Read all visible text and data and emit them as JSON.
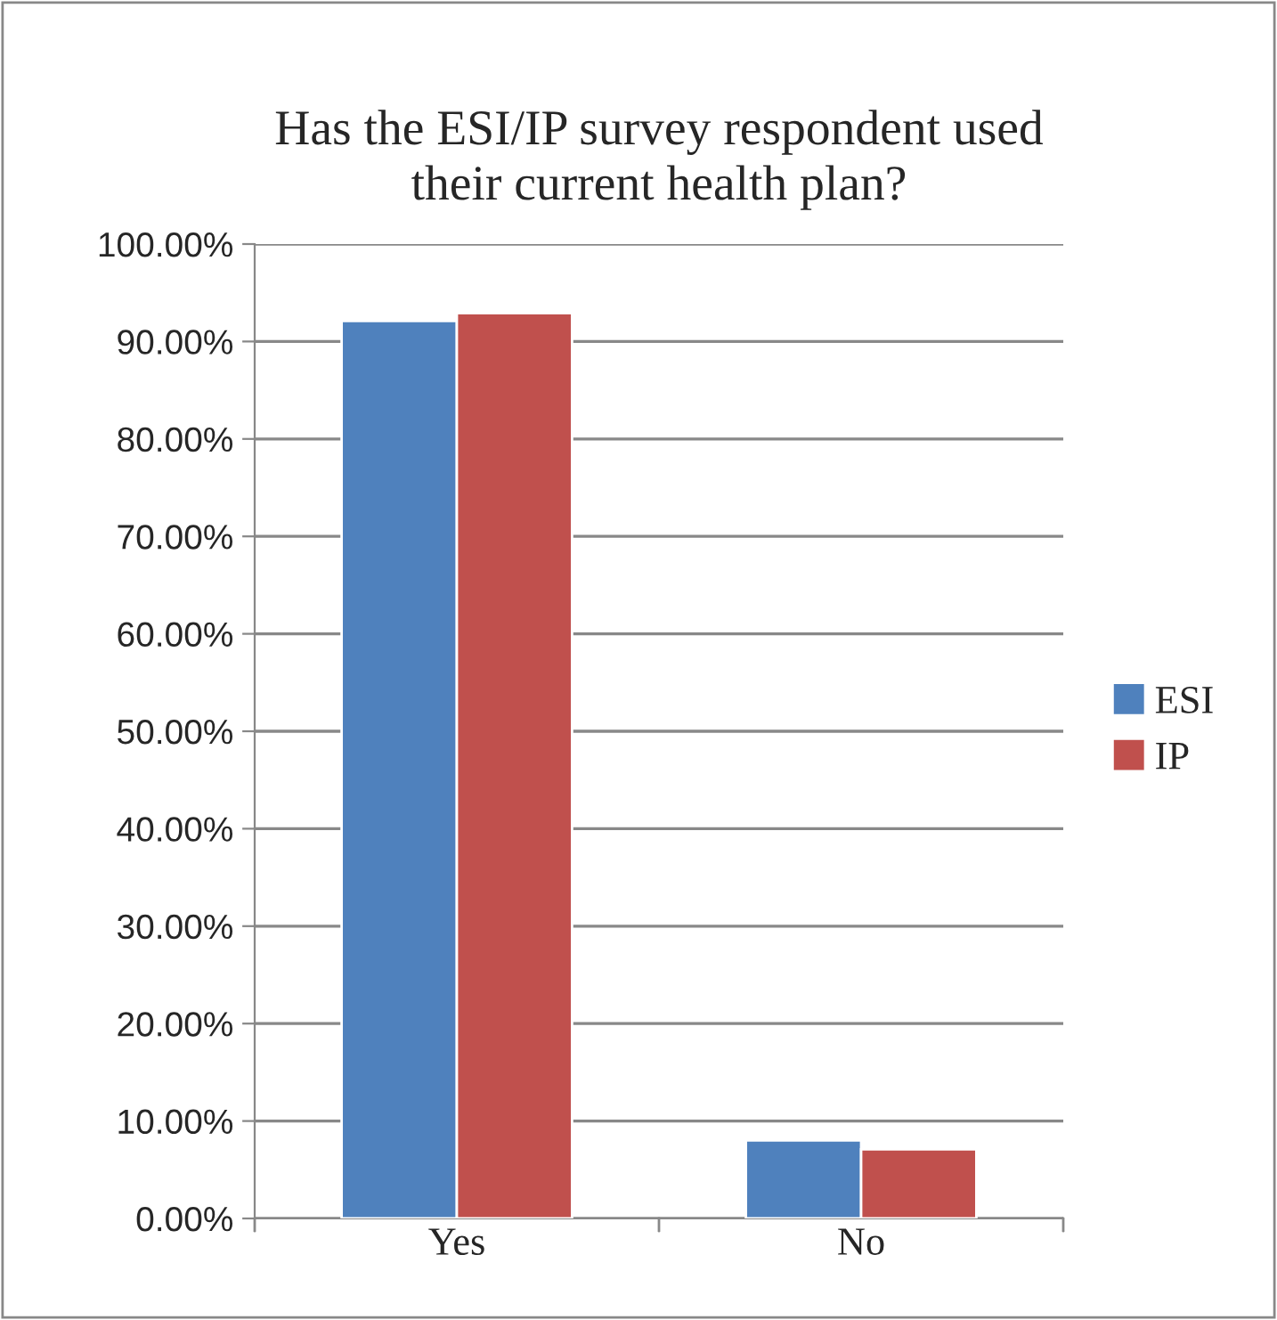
{
  "chart_data": {
    "type": "bar",
    "title": "Has the ESI/IP survey respondent used\ntheir current health plan?",
    "categories": [
      "Yes",
      "No"
    ],
    "series": [
      {
        "name": "ESI",
        "color": "#4f81bd",
        "values": [
          92.1,
          8.0
        ]
      },
      {
        "name": "IP",
        "color": "#c0504d",
        "values": [
          92.9,
          7.1
        ]
      }
    ],
    "ylim": [
      0,
      100
    ],
    "yticks": [
      {
        "value": 0,
        "label": "0.00%"
      },
      {
        "value": 10,
        "label": "10.00%"
      },
      {
        "value": 20,
        "label": "20.00%"
      },
      {
        "value": 30,
        "label": "30.00%"
      },
      {
        "value": 40,
        "label": "40.00%"
      },
      {
        "value": 50,
        "label": "50.00%"
      },
      {
        "value": 60,
        "label": "60.00%"
      },
      {
        "value": 70,
        "label": "70.00%"
      },
      {
        "value": 80,
        "label": "80.00%"
      },
      {
        "value": 90,
        "label": "90.00%"
      },
      {
        "value": 100,
        "label": "100.00%"
      }
    ],
    "grid": "y",
    "legend": "right"
  }
}
